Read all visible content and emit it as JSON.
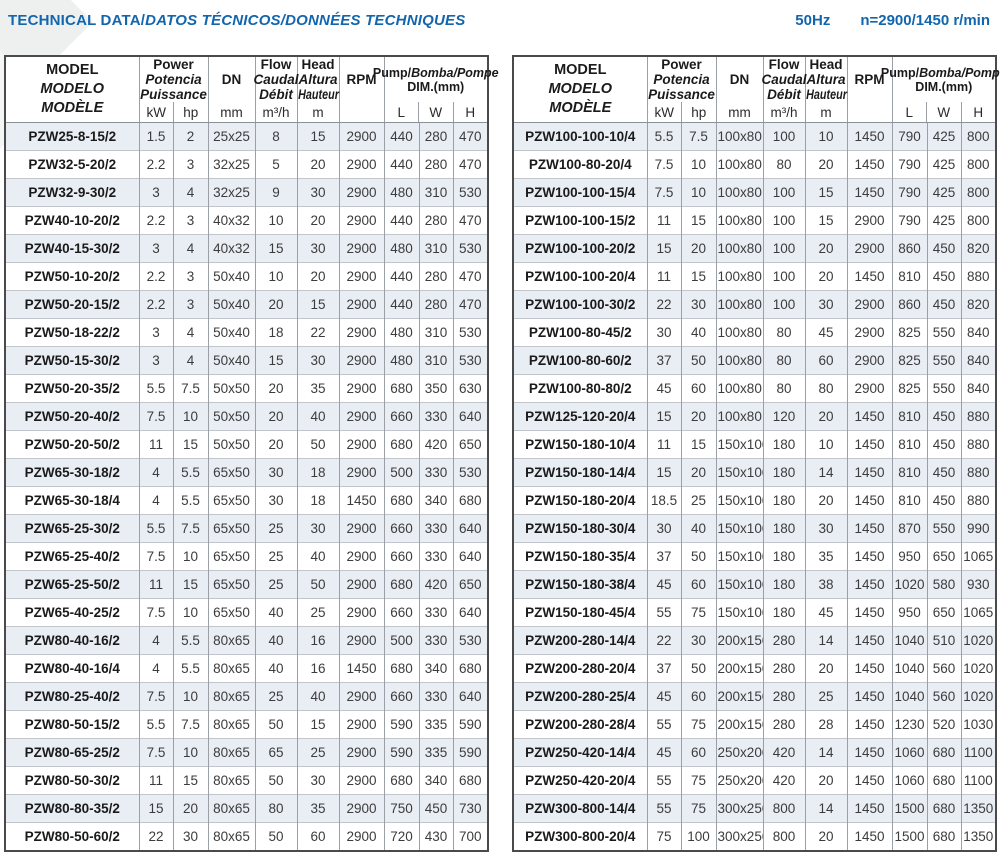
{
  "title": {
    "main": "TECHNICAL DATA/",
    "italic": "DATOS TÉCNICOS/DONNÉES TECHNIQUES"
  },
  "frequency": {
    "hz": "50Hz",
    "speed": "n=2900/1450 r/min"
  },
  "accent_color": "#1266ae",
  "row_shade_color": "#e9edf4",
  "table_header": {
    "model": [
      "MODEL",
      "MODELO",
      "MODÈLE"
    ],
    "power": [
      "Power",
      "Potencia",
      "Puissance"
    ],
    "power_units": [
      "kW",
      "hp"
    ],
    "dn": "DN",
    "dn_unit": "mm",
    "flow": [
      "Flow",
      "Caudal",
      "Débit"
    ],
    "flow_unit": "m³/h",
    "head": [
      "Head",
      "Altura",
      "Hauteur"
    ],
    "head_unit": "m",
    "rpm": "RPM",
    "dim_pump": "Pump/",
    "dim_rest": "Bomba/Pompe",
    "dim_sub": "DIM.(mm)",
    "dim_units": [
      "L",
      "W",
      "H"
    ]
  },
  "columns": [
    "MODEL",
    "kW",
    "hp",
    "DN mm",
    "Flow m³/h",
    "Head m",
    "RPM",
    "L",
    "W",
    "H"
  ],
  "tables": {
    "left": {
      "rows": [
        [
          "PZW25-8-15/2",
          "1.5",
          "2",
          "25x25",
          "8",
          "15",
          "2900",
          "440",
          "280",
          "470"
        ],
        [
          "PZW32-5-20/2",
          "2.2",
          "3",
          "32x25",
          "5",
          "20",
          "2900",
          "440",
          "280",
          "470"
        ],
        [
          "PZW32-9-30/2",
          "3",
          "4",
          "32x25",
          "9",
          "30",
          "2900",
          "480",
          "310",
          "530"
        ],
        [
          "PZW40-10-20/2",
          "2.2",
          "3",
          "40x32",
          "10",
          "20",
          "2900",
          "440",
          "280",
          "470"
        ],
        [
          "PZW40-15-30/2",
          "3",
          "4",
          "40x32",
          "15",
          "30",
          "2900",
          "480",
          "310",
          "530"
        ],
        [
          "PZW50-10-20/2",
          "2.2",
          "3",
          "50x40",
          "10",
          "20",
          "2900",
          "440",
          "280",
          "470"
        ],
        [
          "PZW50-20-15/2",
          "2.2",
          "3",
          "50x40",
          "20",
          "15",
          "2900",
          "440",
          "280",
          "470"
        ],
        [
          "PZW50-18-22/2",
          "3",
          "4",
          "50x40",
          "18",
          "22",
          "2900",
          "480",
          "310",
          "530"
        ],
        [
          "PZW50-15-30/2",
          "3",
          "4",
          "50x40",
          "15",
          "30",
          "2900",
          "480",
          "310",
          "530"
        ],
        [
          "PZW50-20-35/2",
          "5.5",
          "7.5",
          "50x50",
          "20",
          "35",
          "2900",
          "680",
          "350",
          "630"
        ],
        [
          "PZW50-20-40/2",
          "7.5",
          "10",
          "50x50",
          "20",
          "40",
          "2900",
          "660",
          "330",
          "640"
        ],
        [
          "PZW50-20-50/2",
          "11",
          "15",
          "50x50",
          "20",
          "50",
          "2900",
          "680",
          "420",
          "650"
        ],
        [
          "PZW65-30-18/2",
          "4",
          "5.5",
          "65x50",
          "30",
          "18",
          "2900",
          "500",
          "330",
          "530"
        ],
        [
          "PZW65-30-18/4",
          "4",
          "5.5",
          "65x50",
          "30",
          "18",
          "1450",
          "680",
          "340",
          "680"
        ],
        [
          "PZW65-25-30/2",
          "5.5",
          "7.5",
          "65x50",
          "25",
          "30",
          "2900",
          "660",
          "330",
          "640"
        ],
        [
          "PZW65-25-40/2",
          "7.5",
          "10",
          "65x50",
          "25",
          "40",
          "2900",
          "660",
          "330",
          "640"
        ],
        [
          "PZW65-25-50/2",
          "11",
          "15",
          "65x50",
          "25",
          "50",
          "2900",
          "680",
          "420",
          "650"
        ],
        [
          "PZW65-40-25/2",
          "7.5",
          "10",
          "65x50",
          "40",
          "25",
          "2900",
          "660",
          "330",
          "640"
        ],
        [
          "PZW80-40-16/2",
          "4",
          "5.5",
          "80x65",
          "40",
          "16",
          "2900",
          "500",
          "330",
          "530"
        ],
        [
          "PZW80-40-16/4",
          "4",
          "5.5",
          "80x65",
          "40",
          "16",
          "1450",
          "680",
          "340",
          "680"
        ],
        [
          "PZW80-25-40/2",
          "7.5",
          "10",
          "80x65",
          "25",
          "40",
          "2900",
          "660",
          "330",
          "640"
        ],
        [
          "PZW80-50-15/2",
          "5.5",
          "7.5",
          "80x65",
          "50",
          "15",
          "2900",
          "590",
          "335",
          "590"
        ],
        [
          "PZW80-65-25/2",
          "7.5",
          "10",
          "80x65",
          "65",
          "25",
          "2900",
          "590",
          "335",
          "590"
        ],
        [
          "PZW80-50-30/2",
          "11",
          "15",
          "80x65",
          "50",
          "30",
          "2900",
          "680",
          "340",
          "680"
        ],
        [
          "PZW80-80-35/2",
          "15",
          "20",
          "80x65",
          "80",
          "35",
          "2900",
          "750",
          "450",
          "730"
        ],
        [
          "PZW80-50-60/2",
          "22",
          "30",
          "80x65",
          "50",
          "60",
          "2900",
          "720",
          "430",
          "700"
        ]
      ]
    },
    "right": {
      "rows": [
        [
          "PZW100-100-10/4",
          "5.5",
          "7.5",
          "100x80",
          "100",
          "10",
          "1450",
          "790",
          "425",
          "800"
        ],
        [
          "PZW100-80-20/4",
          "7.5",
          "10",
          "100x80",
          "80",
          "20",
          "1450",
          "790",
          "425",
          "800"
        ],
        [
          "PZW100-100-15/4",
          "7.5",
          "10",
          "100x80",
          "100",
          "15",
          "1450",
          "790",
          "425",
          "800"
        ],
        [
          "PZW100-100-15/2",
          "11",
          "15",
          "100x80",
          "100",
          "15",
          "2900",
          "790",
          "425",
          "800"
        ],
        [
          "PZW100-100-20/2",
          "15",
          "20",
          "100x80",
          "100",
          "20",
          "2900",
          "860",
          "450",
          "820"
        ],
        [
          "PZW100-100-20/4",
          "11",
          "15",
          "100x80",
          "100",
          "20",
          "1450",
          "810",
          "450",
          "880"
        ],
        [
          "PZW100-100-30/2",
          "22",
          "30",
          "100x80",
          "100",
          "30",
          "2900",
          "860",
          "450",
          "820"
        ],
        [
          "PZW100-80-45/2",
          "30",
          "40",
          "100x80",
          "80",
          "45",
          "2900",
          "825",
          "550",
          "840"
        ],
        [
          "PZW100-80-60/2",
          "37",
          "50",
          "100x80",
          "80",
          "60",
          "2900",
          "825",
          "550",
          "840"
        ],
        [
          "PZW100-80-80/2",
          "45",
          "60",
          "100x80",
          "80",
          "80",
          "2900",
          "825",
          "550",
          "840"
        ],
        [
          "PZW125-120-20/4",
          "15",
          "20",
          "100x80",
          "120",
          "20",
          "1450",
          "810",
          "450",
          "880"
        ],
        [
          "PZW150-180-10/4",
          "11",
          "15",
          "150x100",
          "180",
          "10",
          "1450",
          "810",
          "450",
          "880"
        ],
        [
          "PZW150-180-14/4",
          "15",
          "20",
          "150x100",
          "180",
          "14",
          "1450",
          "810",
          "450",
          "880"
        ],
        [
          "PZW150-180-20/4",
          "18.5",
          "25",
          "150x100",
          "180",
          "20",
          "1450",
          "810",
          "450",
          "880"
        ],
        [
          "PZW150-180-30/4",
          "30",
          "40",
          "150x100",
          "180",
          "30",
          "1450",
          "870",
          "550",
          "990"
        ],
        [
          "PZW150-180-35/4",
          "37",
          "50",
          "150x100",
          "180",
          "35",
          "1450",
          "950",
          "650",
          "1065"
        ],
        [
          "PZW150-180-38/4",
          "45",
          "60",
          "150x100",
          "180",
          "38",
          "1450",
          "1020",
          "580",
          "930"
        ],
        [
          "PZW150-180-45/4",
          "55",
          "75",
          "150x100",
          "180",
          "45",
          "1450",
          "950",
          "650",
          "1065"
        ],
        [
          "PZW200-280-14/4",
          "22",
          "30",
          "200x150",
          "280",
          "14",
          "1450",
          "1040",
          "510",
          "1020"
        ],
        [
          "PZW200-280-20/4",
          "37",
          "50",
          "200x150",
          "280",
          "20",
          "1450",
          "1040",
          "560",
          "1020"
        ],
        [
          "PZW200-280-25/4",
          "45",
          "60",
          "200x150",
          "280",
          "25",
          "1450",
          "1040",
          "560",
          "1020"
        ],
        [
          "PZW200-280-28/4",
          "55",
          "75",
          "200x150",
          "280",
          "28",
          "1450",
          "1230",
          "520",
          "1030"
        ],
        [
          "PZW250-420-14/4",
          "45",
          "60",
          "250x200",
          "420",
          "14",
          "1450",
          "1060",
          "680",
          "1100"
        ],
        [
          "PZW250-420-20/4",
          "55",
          "75",
          "250x200",
          "420",
          "20",
          "1450",
          "1060",
          "680",
          "1100"
        ],
        [
          "PZW300-800-14/4",
          "55",
          "75",
          "300x250",
          "800",
          "14",
          "1450",
          "1500",
          "680",
          "1350"
        ],
        [
          "PZW300-800-20/4",
          "75",
          "100",
          "300x250",
          "800",
          "20",
          "1450",
          "1500",
          "680",
          "1350"
        ]
      ]
    }
  }
}
